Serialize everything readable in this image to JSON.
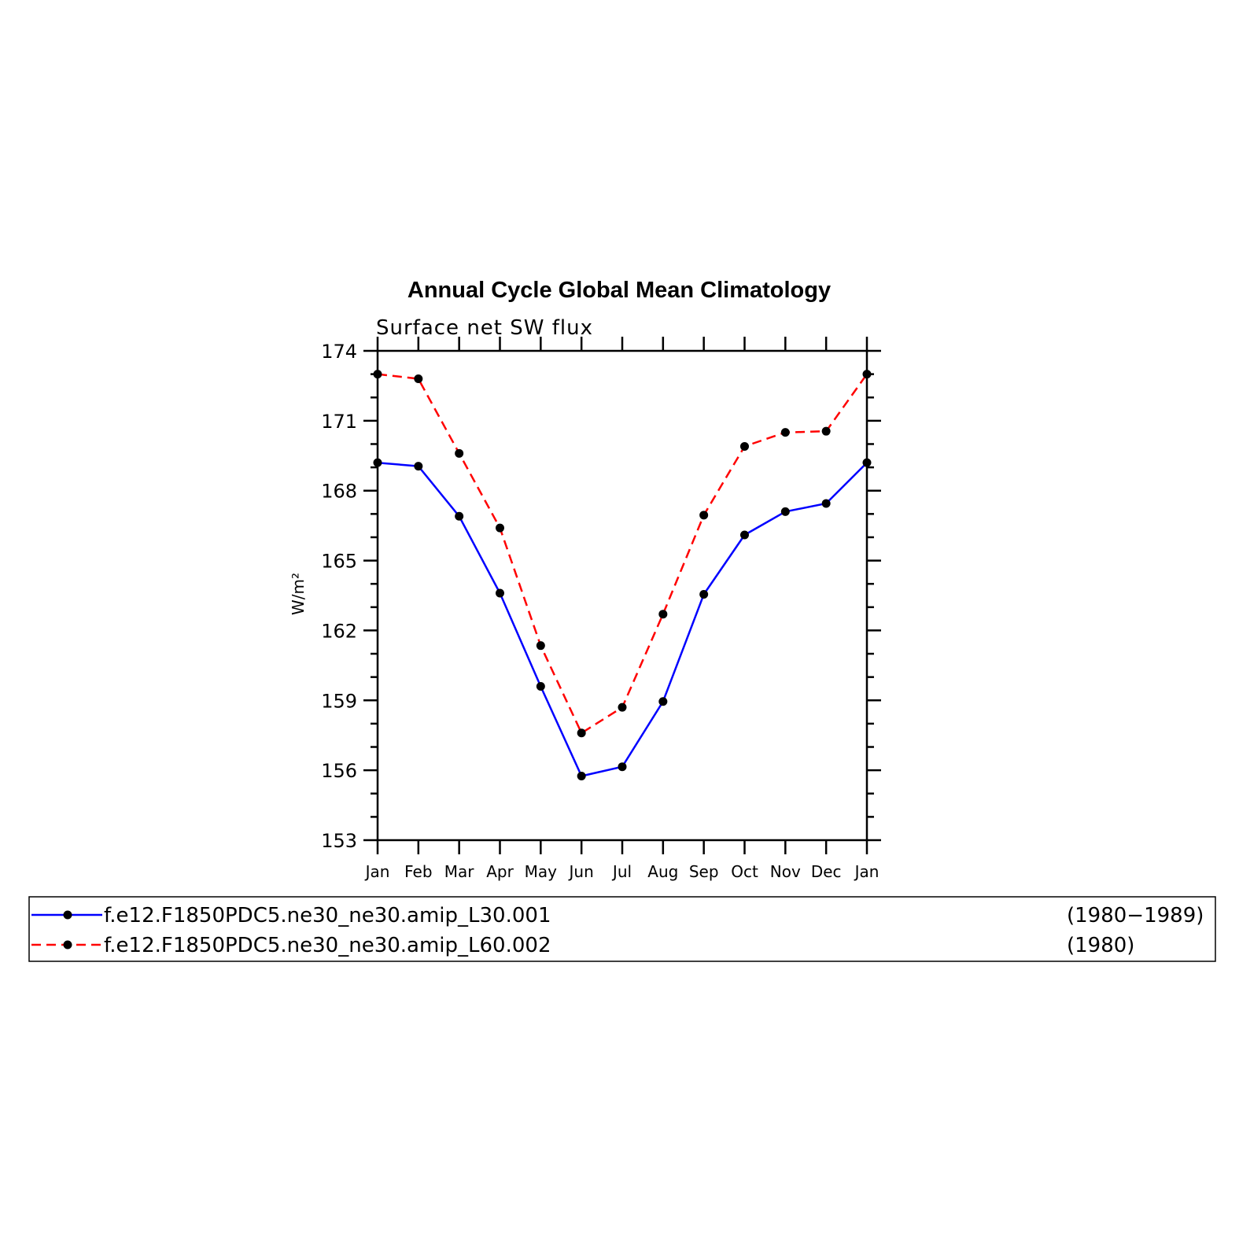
{
  "chart_data": {
    "type": "line",
    "title": "Annual Cycle Global Mean Climatology",
    "subtitle": "Surface net SW flux",
    "ylabel": "W/m²",
    "xlabel": "",
    "categories": [
      "Jan",
      "Feb",
      "Mar",
      "Apr",
      "May",
      "Jun",
      "Jul",
      "Aug",
      "Sep",
      "Oct",
      "Nov",
      "Dec",
      "Jan"
    ],
    "ylim": [
      153,
      174
    ],
    "yticks": [
      153,
      156,
      159,
      162,
      165,
      168,
      171,
      174
    ],
    "series": [
      {
        "name": "f.e12.F1850PDC5.ne30_ne30.amip_L30.001",
        "period": "(1980−1989)",
        "color": "#0000ff",
        "dash": "solid",
        "values": [
          169.2,
          169.05,
          166.9,
          163.6,
          159.6,
          155.75,
          156.15,
          158.95,
          163.55,
          166.1,
          167.1,
          167.45,
          169.2
        ]
      },
      {
        "name": "f.e12.F1850PDC5.ne30_ne30.amip_L60.002",
        "period": "(1980)",
        "color": "#ff0000",
        "dash": "dashed",
        "values": [
          173.0,
          172.8,
          169.6,
          166.4,
          161.35,
          157.6,
          158.7,
          162.7,
          166.95,
          169.9,
          170.5,
          170.55,
          173.0
        ]
      }
    ],
    "marker_color": "#000000",
    "legend_position": "bottom",
    "grid": false
  }
}
